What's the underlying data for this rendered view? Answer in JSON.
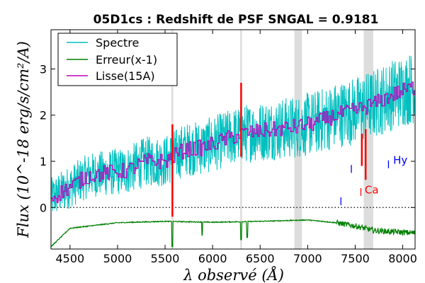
{
  "chart_data": {
    "type": "line",
    "title": "05D1cs : Redshift de PSF SNGAL = 0.9181",
    "xlabel": "λ observé (Å)",
    "ylabel": "Flux (10^-18 erg/s/cm²/A)",
    "xlim": [
      4300,
      8130
    ],
    "ylim": [
      -0.9,
      3.85
    ],
    "xticks": [
      4500,
      5000,
      5500,
      6000,
      6500,
      7000,
      7500,
      8000
    ],
    "yticks": [
      0,
      1,
      2,
      3
    ],
    "legend_position": "top-left",
    "legend": [
      "Spectre",
      "Erreur(x-1)",
      "Lisse(15A)"
    ],
    "colors": {
      "spectre": "#00bfbf",
      "erreur": "#008000",
      "lisse": "#bf00bf",
      "sky": "#ff0000",
      "absorption": "#0000ff"
    },
    "series": [
      {
        "name": "Lisse(15A)",
        "x": [
          4300,
          4500,
          4700,
          4900,
          5100,
          5300,
          5500,
          5700,
          5900,
          6100,
          6300,
          6500,
          6700,
          6900,
          7100,
          7300,
          7500,
          7700,
          7900,
          8100
        ],
        "y": [
          0.2,
          0.45,
          0.7,
          0.75,
          0.8,
          1.0,
          1.0,
          1.25,
          1.3,
          1.45,
          1.6,
          1.65,
          1.7,
          1.75,
          1.85,
          2.0,
          2.1,
          2.25,
          2.45,
          2.6
        ]
      },
      {
        "name": "Erreur(x-1)",
        "x": [
          4300,
          4500,
          5000,
          5500,
          6000,
          6500,
          7000,
          7300,
          7500,
          7700,
          8100
        ],
        "y": [
          -0.85,
          -0.45,
          -0.33,
          -0.3,
          -0.32,
          -0.3,
          -0.27,
          -0.33,
          -0.4,
          -0.5,
          -0.55
        ]
      }
    ],
    "shaded_bands": [
      [
        6860,
        6940
      ],
      [
        7590,
        7690
      ]
    ],
    "vertical_lines": [
      5577,
      6300
    ],
    "line_markers": [
      {
        "label": "Ca",
        "color": "red",
        "x": 7600,
        "y": 0.3
      },
      {
        "label": "Hy",
        "color": "blue",
        "x": 7900,
        "y": 0.95
      }
    ]
  }
}
